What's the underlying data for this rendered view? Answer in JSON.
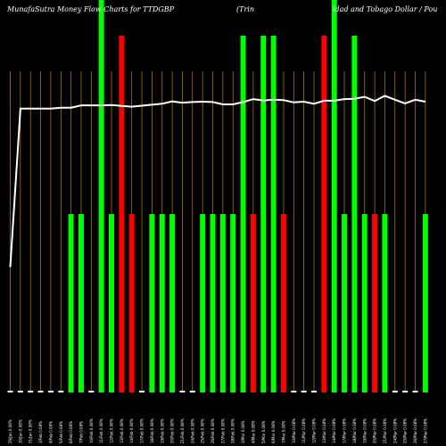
{
  "header": {
    "title_left": "MunafaSutra  Money Flow  Charts for TTDGBP",
    "title_mid": "(Trin",
    "title_right": "idad and Tobago  Dollar / Pou"
  },
  "chart_data": {
    "type": "bar",
    "series": [
      {
        "name": "money-flow",
        "values": [
          0,
          0,
          0,
          0,
          0,
          0,
          1,
          1,
          0,
          3,
          1,
          2,
          1,
          0,
          1,
          1,
          1,
          0,
          0,
          1,
          1,
          1,
          1,
          2,
          1,
          2,
          2,
          1,
          0,
          0,
          0,
          2,
          3,
          1,
          2,
          1,
          1,
          1,
          0,
          0,
          0,
          1
        ],
        "direction": [
          "flat",
          "flat",
          "flat",
          "flat",
          "flat",
          "flat",
          "up",
          "up",
          "flat",
          "up",
          "up",
          "down",
          "down",
          "flat",
          "up",
          "up",
          "up",
          "flat",
          "flat",
          "up",
          "up",
          "up",
          "up",
          "up",
          "down",
          "up",
          "up",
          "down",
          "flat",
          "flat",
          "flat",
          "down",
          "up",
          "up",
          "up",
          "up",
          "down",
          "up",
          "flat",
          "flat",
          "flat",
          "up"
        ]
      },
      {
        "name": "price",
        "values": [
          38,
          86,
          86,
          86,
          86,
          86.3,
          86.3,
          87,
          87,
          87,
          87.1,
          86.8,
          86.6,
          86.9,
          87.2,
          87.5,
          88.2,
          87.8,
          88.0,
          88.1,
          88.0,
          87.3,
          87.3,
          88.0,
          88.9,
          88.5,
          88.7,
          88.6,
          87.9,
          88.1,
          87.5,
          88.4,
          88.4,
          88.9,
          89.0,
          89.6,
          88.3,
          89.9,
          88.7,
          87.6,
          88.7,
          88.1
        ]
      }
    ],
    "x_tick_labels": [
      "29/Jan 0.08%",
      "30/Jan 0.08%",
      "31/Jan 0.08%",
      "3/Feb 0.08%",
      "4/Feb 0.08%",
      "5/Feb 0.08%",
      "6/Feb 0.08%",
      "7/Feb 0.08%",
      "10/Feb 0.08%",
      "11/Feb 0.08%",
      "12/Feb 0.08%",
      "13/Feb 0.08%",
      "14/Feb 0.08%",
      "17/Feb 0.08%",
      "18/Feb 0.08%",
      "19/Feb 0.08%",
      "20/Feb 0.08%",
      "21/Feb 0.08%",
      "24/Feb 0.08%",
      "25/Feb 0.08%",
      "26/Feb 0.08%",
      "27/Feb 0.08%",
      "28/Feb 0.08%",
      "3/Mar 0.08%",
      "4/Mar 0.08%",
      "5/Mar 0.08%",
      "6/Mar 0.08%",
      "7/Mar 0.08%",
      "10/Mar 0.08%",
      "11/Mar 0.08%",
      "12/Mar 0.08%",
      "13/Mar 0.08%",
      "14/Mar 0.08%",
      "17/Mar 0.08%",
      "18/Mar 0.08%",
      "19/Mar 0.08%",
      "20/Mar 0.08%",
      "21/Mar 0.08%",
      "24/Mar 0.08%",
      "25/Mar 0.08%",
      "26/Mar 0.08%",
      "27/Mar 0.08%"
    ],
    "grid": true,
    "colors": {
      "up": "#00ff00",
      "down": "#ff0000",
      "flat": "#ffffff",
      "grid": "#b8860b",
      "price_line": "#ffffff",
      "background": "#000000"
    }
  }
}
